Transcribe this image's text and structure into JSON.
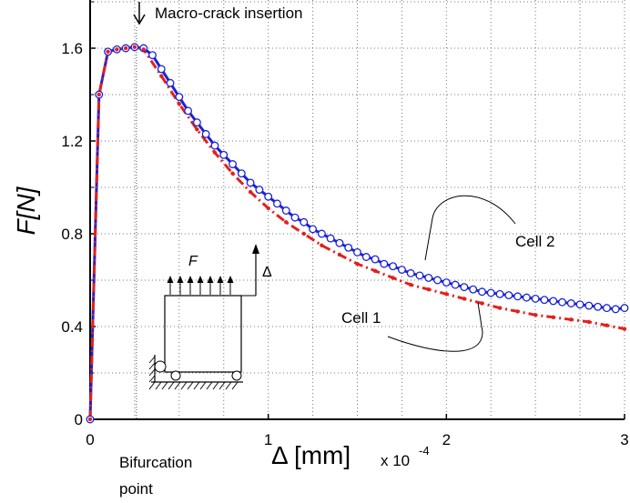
{
  "chart_data": {
    "type": "line",
    "ylabel": "F[N]",
    "xlabel": "Δ [mm]",
    "xscale_label": "x 10",
    "xscale_exponent": "-4",
    "xlim": [
      0,
      3
    ],
    "ylim": [
      0,
      1.6
    ],
    "x_ticks": [
      0,
      1,
      2,
      3
    ],
    "y_ticks": [
      0,
      0.4,
      0.8,
      1.2,
      1.6
    ],
    "grid": true,
    "series": [
      {
        "name": "Cell 2",
        "color": "#1a23d6",
        "marker": "open-circle",
        "line_style": "solid",
        "x": [
          0,
          0.05,
          0.1,
          0.15,
          0.2,
          0.25,
          0.3,
          0.35,
          0.4,
          0.45,
          0.5,
          0.55,
          0.6,
          0.65,
          0.7,
          0.75,
          0.8,
          0.85,
          0.9,
          0.95,
          1.0,
          1.05,
          1.1,
          1.15,
          1.2,
          1.25,
          1.3,
          1.35,
          1.4,
          1.45,
          1.5,
          1.55,
          1.6,
          1.65,
          1.7,
          1.75,
          1.8,
          1.85,
          1.9,
          1.95,
          2.0,
          2.05,
          2.1,
          2.15,
          2.2,
          2.25,
          2.3,
          2.35,
          2.4,
          2.45,
          2.5,
          2.55,
          2.6,
          2.65,
          2.7,
          2.75,
          2.8,
          2.85,
          2.9,
          2.95,
          3.0
        ],
        "y": [
          0,
          1.4,
          1.585,
          1.595,
          1.6,
          1.605,
          1.6,
          1.57,
          1.51,
          1.45,
          1.39,
          1.33,
          1.28,
          1.23,
          1.18,
          1.14,
          1.1,
          1.06,
          1.02,
          0.99,
          0.96,
          0.93,
          0.9,
          0.87,
          0.85,
          0.82,
          0.8,
          0.78,
          0.76,
          0.74,
          0.72,
          0.7,
          0.69,
          0.67,
          0.66,
          0.645,
          0.63,
          0.62,
          0.61,
          0.6,
          0.59,
          0.58,
          0.57,
          0.56,
          0.55,
          0.545,
          0.54,
          0.535,
          0.53,
          0.525,
          0.52,
          0.515,
          0.51,
          0.505,
          0.5,
          0.495,
          0.49,
          0.485,
          0.48,
          0.475,
          0.48
        ]
      },
      {
        "name": "Cell 1",
        "color": "#e3201b",
        "marker": "dot",
        "line_style": "dash-dot",
        "x": [
          0,
          0.05,
          0.1,
          0.15,
          0.2,
          0.25,
          0.3,
          0.4,
          0.5,
          0.6,
          0.7,
          0.8,
          0.9,
          1.0,
          1.1,
          1.2,
          1.3,
          1.4,
          1.5,
          1.6,
          1.7,
          1.8,
          1.9,
          2.0,
          2.1,
          2.2,
          2.3,
          2.4,
          2.5,
          2.6,
          2.7,
          2.8,
          2.9,
          3.0
        ],
        "y": [
          0,
          1.4,
          1.585,
          1.595,
          1.6,
          1.605,
          1.595,
          1.48,
          1.36,
          1.25,
          1.15,
          1.06,
          0.98,
          0.91,
          0.85,
          0.8,
          0.75,
          0.71,
          0.67,
          0.64,
          0.61,
          0.58,
          0.56,
          0.54,
          0.52,
          0.5,
          0.48,
          0.465,
          0.45,
          0.44,
          0.43,
          0.42,
          0.405,
          0.39
        ]
      }
    ],
    "annotations": {
      "macro_crack": "Macro-crack insertion",
      "bifurcation_line1": "Bifurcation",
      "bifurcation_line2": "point",
      "cell2": "Cell 2",
      "cell1": "Cell 1",
      "inset_force": "F",
      "inset_disp": "Δ"
    },
    "bifurcation_x": 0.26,
    "macro_crack_x": 0.28
  }
}
